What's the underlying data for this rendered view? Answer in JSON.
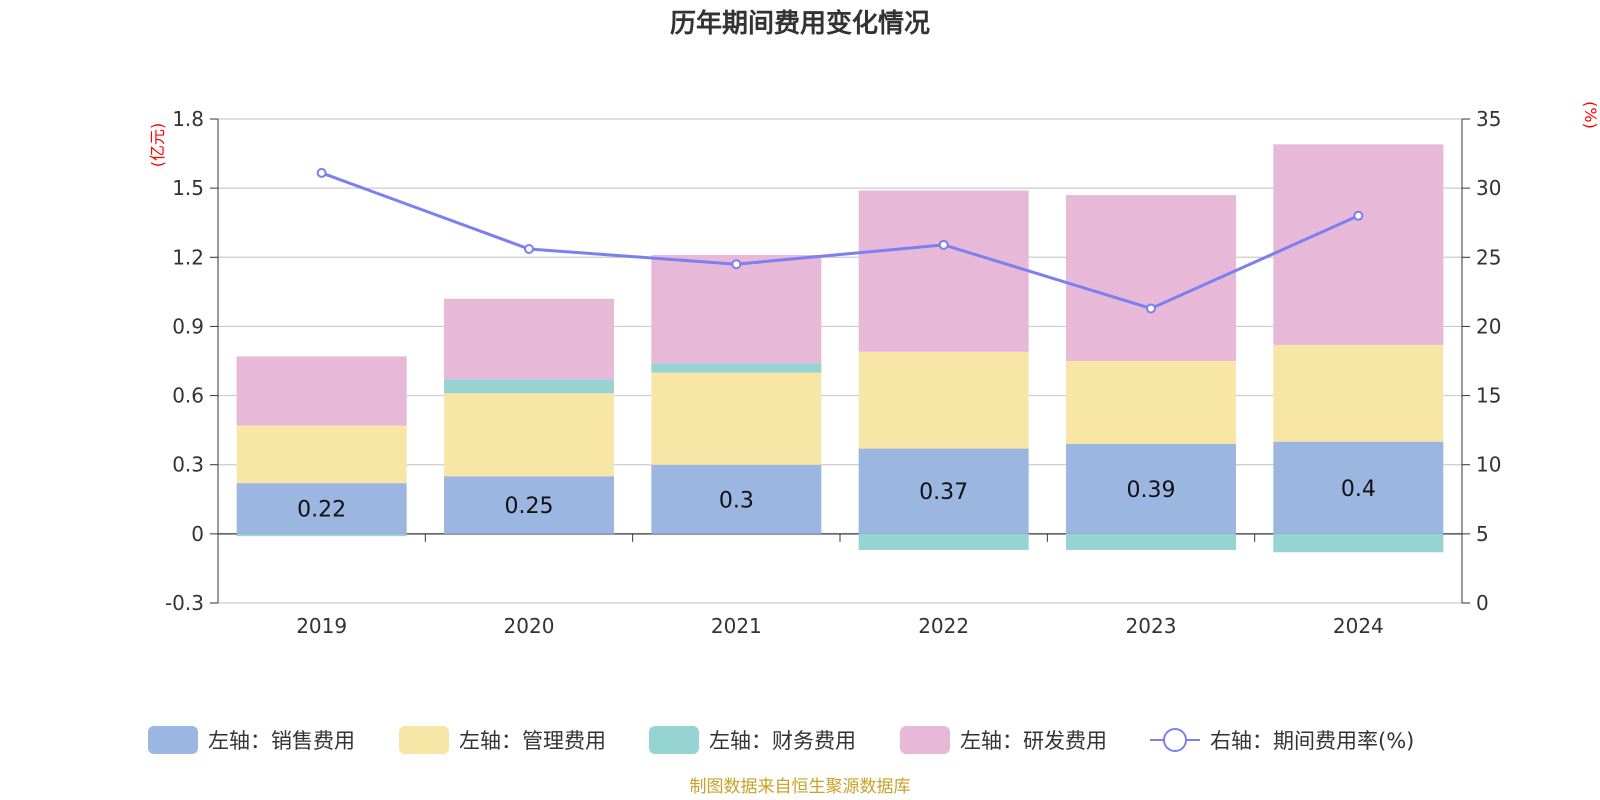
{
  "chart_data": {
    "type": "bar",
    "title": "历年期间费用变化情况",
    "categories": [
      "2019",
      "2020",
      "2021",
      "2022",
      "2023",
      "2024"
    ],
    "series": [
      {
        "name": "左轴：销售费用",
        "axis": "left",
        "type": "bar",
        "color": "#9bb7e1",
        "values": [
          0.22,
          0.25,
          0.3,
          0.37,
          0.39,
          0.4
        ],
        "labels": [
          "0.22",
          "0.25",
          "0.3",
          "0.37",
          "0.39",
          "0.4"
        ]
      },
      {
        "name": "左轴：管理费用",
        "axis": "left",
        "type": "bar",
        "color": "#f8e6a6",
        "values": [
          0.25,
          0.36,
          0.4,
          0.42,
          0.36,
          0.42
        ]
      },
      {
        "name": "左轴：财务费用",
        "axis": "left",
        "type": "bar",
        "color": "#96d4d4",
        "values": [
          -0.01,
          0.06,
          0.04,
          -0.07,
          -0.07,
          -0.08
        ]
      },
      {
        "name": "左轴：研发费用",
        "axis": "left",
        "type": "bar",
        "color": "#e8b8d8",
        "values": [
          0.3,
          0.35,
          0.47,
          0.7,
          0.72,
          0.87
        ]
      },
      {
        "name": "右轴：期间费用率(%)",
        "axis": "right",
        "type": "line",
        "color": "#7b7ff0",
        "values": [
          31.1,
          25.6,
          24.5,
          25.9,
          21.3,
          28.0
        ]
      }
    ],
    "y_left": {
      "unit": "(亿元)",
      "ticks": [
        "1.8",
        "1.5",
        "1.2",
        "0.9",
        "0.6",
        "0.3",
        "0",
        "-0.3"
      ],
      "range": [
        -0.3,
        1.8
      ]
    },
    "y_right": {
      "unit": "(%)",
      "ticks": [
        "35",
        "30",
        "25",
        "20",
        "15",
        "10",
        "5",
        "0"
      ],
      "range": [
        0,
        35
      ]
    },
    "grid": true,
    "legend_position": "bottom"
  },
  "footer": {
    "source": "制图数据来自恒生聚源数据库"
  }
}
